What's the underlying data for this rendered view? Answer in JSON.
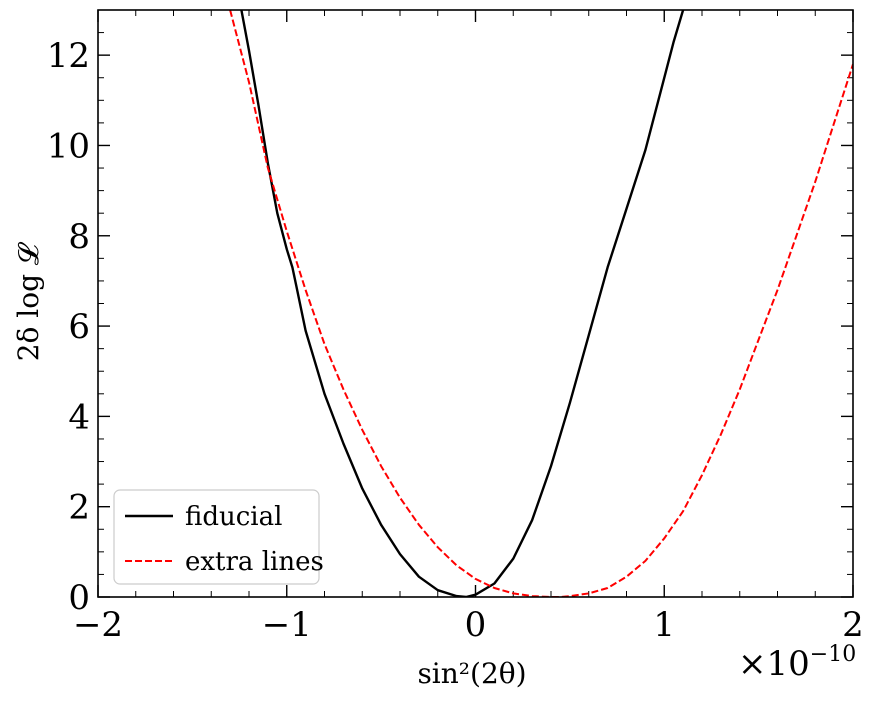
{
  "chart_data": {
    "type": "line",
    "xlabel": "sin²(2θ)",
    "ylabel": "2δ log 𝓛",
    "x_offset_label": "×10",
    "x_offset_exponent": "−10",
    "xlim": [
      -2,
      2
    ],
    "ylim": [
      0,
      13
    ],
    "xticks": [
      -2,
      -1,
      0,
      1,
      2
    ],
    "xtick_labels": [
      "−2",
      "−1",
      "0",
      "1",
      "2"
    ],
    "yticks": [
      0,
      2,
      4,
      6,
      8,
      10,
      12
    ],
    "ytick_labels": [
      "0",
      "2",
      "4",
      "6",
      "8",
      "10",
      "12"
    ],
    "legend": "lower-left",
    "series": [
      {
        "name": "fiducial",
        "color": "#000000",
        "dash": "solid",
        "x": [
          -1.24,
          -1.2,
          -1.15,
          -1.1,
          -1.05,
          -1.0,
          -0.97,
          -0.95,
          -0.9,
          -0.8,
          -0.7,
          -0.6,
          -0.5,
          -0.4,
          -0.3,
          -0.2,
          -0.1,
          -0.05,
          0.0,
          0.1,
          0.2,
          0.3,
          0.4,
          0.5,
          0.6,
          0.7,
          0.8,
          0.9,
          1.0,
          1.05,
          1.1
        ],
        "y": [
          13.0,
          12.1,
          10.9,
          9.6,
          8.5,
          7.7,
          7.3,
          6.9,
          5.9,
          4.5,
          3.4,
          2.4,
          1.6,
          0.95,
          0.45,
          0.15,
          0.02,
          0.0,
          0.05,
          0.3,
          0.85,
          1.7,
          2.9,
          4.3,
          5.8,
          7.3,
          8.6,
          9.9,
          11.5,
          12.3,
          13.0
        ]
      },
      {
        "name": "extra lines",
        "color": "#ff0000",
        "dash": "dashed",
        "x": [
          -1.3,
          -1.2,
          -1.1,
          -1.0,
          -0.9,
          -0.8,
          -0.7,
          -0.6,
          -0.5,
          -0.4,
          -0.3,
          -0.2,
          -0.1,
          0.0,
          0.1,
          0.2,
          0.3,
          0.4,
          0.45,
          0.5,
          0.6,
          0.7,
          0.8,
          0.9,
          1.0,
          1.1,
          1.2,
          1.3,
          1.4,
          1.5,
          1.6,
          1.7,
          1.8,
          1.9,
          2.0
        ],
        "y": [
          13.0,
          11.4,
          9.5,
          8.1,
          6.8,
          5.6,
          4.6,
          3.7,
          2.9,
          2.2,
          1.6,
          1.1,
          0.7,
          0.4,
          0.2,
          0.08,
          0.02,
          0.0,
          0.0,
          0.02,
          0.08,
          0.2,
          0.45,
          0.8,
          1.3,
          1.9,
          2.7,
          3.6,
          4.6,
          5.7,
          6.8,
          8.0,
          9.2,
          10.5,
          11.8
        ]
      }
    ]
  }
}
